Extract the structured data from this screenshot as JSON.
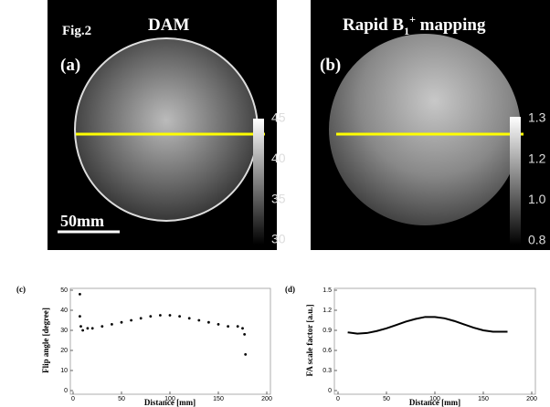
{
  "figure_label": "Fig.2",
  "panels": [
    {
      "label": "(a)",
      "title": "DAM",
      "colorbar_ticks": [
        "45",
        "40",
        "35",
        "30"
      ],
      "scale_bar": "50mm"
    },
    {
      "label": "(b)",
      "title_parts": {
        "main": "Rapid B",
        "sub": "1",
        "sup": "+",
        "rest": " mapping"
      },
      "colorbar_ticks": [
        "1.3",
        "1.2",
        "1.0",
        "0.8"
      ]
    }
  ],
  "chart_data": [
    {
      "type": "scatter",
      "label": "(c)",
      "x_label": "Distance [mm]",
      "y_label": "Flip angle [degree]",
      "color": "#000000",
      "x": [
        7,
        7,
        8,
        10,
        15,
        20,
        30,
        40,
        50,
        60,
        70,
        80,
        90,
        100,
        110,
        120,
        130,
        140,
        150,
        160,
        170,
        175,
        177,
        178
      ],
      "values": [
        48,
        37,
        32,
        30,
        31,
        31,
        32,
        33,
        34,
        35,
        36,
        37,
        37.5,
        37.5,
        37,
        36,
        35,
        34,
        33,
        32,
        32,
        31,
        28,
        18
      ],
      "xlim": [
        0,
        200
      ],
      "xticks": [
        0,
        50,
        100,
        150,
        200
      ],
      "ylim": [
        0,
        50
      ],
      "yticks": [
        0,
        10,
        20,
        30,
        40,
        50
      ]
    },
    {
      "type": "line",
      "label": "(d)",
      "x_label": "Distance [mm]",
      "y_label": "FA scale factor [a.u.]",
      "color": "#000000",
      "x": [
        10,
        20,
        30,
        40,
        50,
        60,
        70,
        80,
        90,
        100,
        110,
        120,
        130,
        140,
        150,
        160,
        170,
        175
      ],
      "values": [
        0.87,
        0.85,
        0.86,
        0.89,
        0.93,
        0.98,
        1.03,
        1.07,
        1.1,
        1.1,
        1.08,
        1.04,
        0.99,
        0.94,
        0.9,
        0.88,
        0.88,
        0.88
      ],
      "xlim": [
        0,
        200
      ],
      "xticks": [
        0,
        50,
        100,
        150,
        200
      ],
      "ylim": [
        0,
        1.5
      ],
      "yticks": [
        0,
        0.3,
        0.6,
        0.9,
        1.2,
        1.5
      ]
    }
  ]
}
